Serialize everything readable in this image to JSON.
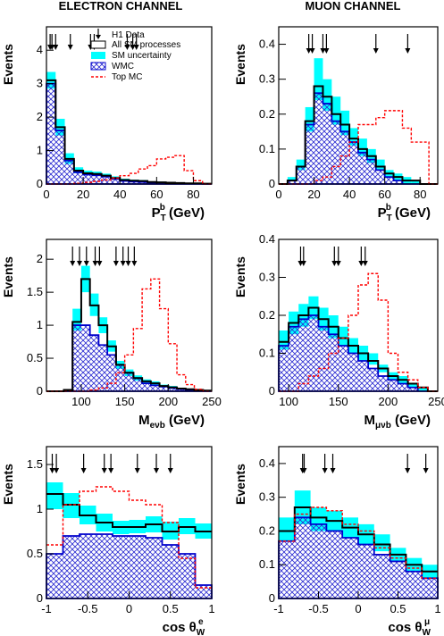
{
  "titles": {
    "left": "ELECTRON CHANNEL",
    "right": "MUON CHANNEL"
  },
  "legend": {
    "h1_data": "H1 Data",
    "all_sm": "All SM processes",
    "sm_unc": "SM uncertainty",
    "wmc": "WMC",
    "top_mc": "Top MC"
  },
  "colors": {
    "sm_line": "#000000",
    "uncertainty": "#00ffff",
    "wmc": "#0000cc",
    "top_mc": "#ff0000"
  },
  "chart_data": [
    {
      "id": "e-ptb",
      "type": "histogram",
      "ylabel": "Events",
      "xlabel_main": "P",
      "xlabel_sup": "b",
      "xlabel_sub": "T",
      "xlabel_unit": "(GeV)",
      "xlim": [
        0,
        90
      ],
      "ylim": [
        0,
        4.7
      ],
      "xticks": [
        0,
        20,
        40,
        60,
        80
      ],
      "yticks": [
        0,
        1,
        2,
        3,
        4
      ],
      "bins": [
        0,
        5,
        10,
        15,
        20,
        25,
        30,
        35,
        40,
        45,
        50,
        55,
        60,
        65,
        70,
        75,
        80,
        85,
        90
      ],
      "sm_total": [
        3.1,
        1.7,
        0.75,
        0.4,
        0.32,
        0.3,
        0.25,
        0.18,
        0.12,
        0.1,
        0.09,
        0.06,
        0.05,
        0.04,
        0.03,
        0.02,
        0.02,
        0.01
      ],
      "sm_low": [
        2.85,
        1.45,
        0.6,
        0.32,
        0.26,
        0.24,
        0.2,
        0.14,
        0.09,
        0.07,
        0.06,
        0.04,
        0.03,
        0.03,
        0.02,
        0.01,
        0.01,
        0.0
      ],
      "sm_high": [
        3.35,
        1.95,
        0.92,
        0.5,
        0.4,
        0.37,
        0.31,
        0.23,
        0.16,
        0.13,
        0.12,
        0.08,
        0.07,
        0.06,
        0.04,
        0.03,
        0.03,
        0.02
      ],
      "wmc": [
        3.0,
        1.6,
        0.7,
        0.35,
        0.28,
        0.26,
        0.22,
        0.15,
        0.09,
        0.07,
        0.06,
        0.04,
        0.03,
        0.02,
        0.01,
        0.01,
        0.0,
        0.0
      ],
      "top_mc": [
        0.0,
        0.0,
        0.0,
        0.02,
        0.05,
        0.08,
        0.12,
        0.18,
        0.25,
        0.32,
        0.45,
        0.55,
        0.75,
        0.8,
        0.85,
        0.4,
        0.1,
        0.0
      ],
      "data_arrows": [
        2,
        3,
        5,
        13,
        24,
        26,
        44,
        47,
        49
      ],
      "show_legend": true
    },
    {
      "id": "mu-ptb",
      "type": "histogram",
      "ylabel": "Events",
      "xlabel_main": "P",
      "xlabel_sup": "b",
      "xlabel_sub": "T",
      "xlabel_unit": "(GeV)",
      "xlim": [
        0,
        90
      ],
      "ylim": [
        0,
        0.45
      ],
      "xticks": [
        0,
        20,
        40,
        60,
        80
      ],
      "yticks": [
        0,
        0.1,
        0.2,
        0.3,
        0.4
      ],
      "bins": [
        0,
        5,
        10,
        15,
        20,
        25,
        30,
        35,
        40,
        45,
        50,
        55,
        60,
        65,
        70,
        75,
        80,
        85,
        90
      ],
      "sm_total": [
        0.0,
        0.01,
        0.05,
        0.18,
        0.28,
        0.25,
        0.2,
        0.17,
        0.13,
        0.1,
        0.08,
        0.05,
        0.03,
        0.02,
        0.01,
        0.01,
        0.0,
        0.0
      ],
      "sm_low": [
        0.0,
        0.01,
        0.04,
        0.15,
        0.24,
        0.21,
        0.17,
        0.14,
        0.11,
        0.08,
        0.06,
        0.04,
        0.02,
        0.01,
        0.0,
        0.0,
        0.0,
        0.0
      ],
      "sm_high": [
        0.0,
        0.02,
        0.07,
        0.22,
        0.36,
        0.3,
        0.25,
        0.21,
        0.16,
        0.13,
        0.1,
        0.07,
        0.04,
        0.03,
        0.02,
        0.01,
        0.0,
        0.0
      ],
      "wmc": [
        0.0,
        0.01,
        0.05,
        0.17,
        0.26,
        0.23,
        0.18,
        0.15,
        0.12,
        0.09,
        0.07,
        0.04,
        0.02,
        0.01,
        0.0,
        0.0,
        0.0,
        0.0
      ],
      "top_mc": [
        0.0,
        0.0,
        0.0,
        0.0,
        0.01,
        0.02,
        0.05,
        0.08,
        0.12,
        0.17,
        0.17,
        0.19,
        0.21,
        0.21,
        0.16,
        0.12,
        0.12,
        0.0
      ],
      "data_arrows": [
        17,
        19,
        25,
        27,
        55,
        73
      ],
      "show_legend": false
    },
    {
      "id": "e-mass",
      "type": "histogram",
      "ylabel": "Events",
      "xlabel_main": "M",
      "xlabel_sup": "",
      "xlabel_sub": "eνb",
      "xlabel_unit": "(GeV)",
      "xlim": [
        60,
        250
      ],
      "ylim": [
        0,
        2.3
      ],
      "xticks": [
        100,
        150,
        200,
        250
      ],
      "yticks": [
        0,
        0.5,
        1,
        1.5,
        2
      ],
      "bins": [
        60,
        70,
        80,
        90,
        100,
        110,
        120,
        130,
        140,
        150,
        160,
        170,
        180,
        190,
        200,
        210,
        220,
        230,
        240,
        250
      ],
      "sm_total": [
        0.0,
        0.0,
        0.02,
        1.05,
        1.7,
        1.3,
        1.0,
        0.68,
        0.4,
        0.28,
        0.2,
        0.15,
        0.12,
        0.08,
        0.06,
        0.04,
        0.03,
        0.02,
        0.01
      ],
      "sm_low": [
        0.0,
        0.0,
        0.02,
        0.92,
        1.5,
        1.14,
        0.88,
        0.6,
        0.34,
        0.23,
        0.16,
        0.12,
        0.09,
        0.06,
        0.04,
        0.03,
        0.02,
        0.01,
        0.0
      ],
      "sm_high": [
        0.0,
        0.0,
        0.03,
        1.25,
        1.9,
        1.48,
        1.12,
        0.77,
        0.46,
        0.33,
        0.24,
        0.18,
        0.15,
        0.1,
        0.08,
        0.05,
        0.04,
        0.03,
        0.02
      ],
      "wmc": [
        0.0,
        0.0,
        0.02,
        1.0,
        1.0,
        0.85,
        0.7,
        0.55,
        0.4,
        0.28,
        0.2,
        0.12,
        0.09,
        0.07,
        0.05,
        0.03,
        0.02,
        0.01,
        0.0
      ],
      "top_mc": [
        0.0,
        0.0,
        0.0,
        0.0,
        0.0,
        0.02,
        0.05,
        0.12,
        0.28,
        0.55,
        0.95,
        1.55,
        1.7,
        1.25,
        0.72,
        0.25,
        0.1,
        0.03,
        0.0
      ],
      "data_arrows": [
        90,
        98,
        106,
        116,
        121,
        140,
        148,
        154,
        161
      ],
      "show_legend": false
    },
    {
      "id": "mu-mass",
      "type": "histogram",
      "ylabel": "Events",
      "xlabel_main": "M",
      "xlabel_sup": "",
      "xlabel_sub": "μνb",
      "xlabel_unit": "(GeV)",
      "xlim": [
        90,
        250
      ],
      "ylim": [
        0,
        0.4
      ],
      "xticks": [
        100,
        150,
        200,
        250
      ],
      "yticks": [
        0,
        0.1,
        0.2,
        0.3,
        0.4
      ],
      "bins": [
        90,
        100,
        110,
        120,
        130,
        140,
        150,
        160,
        170,
        180,
        190,
        200,
        210,
        220,
        230,
        240,
        250
      ],
      "sm_total": [
        0.13,
        0.18,
        0.2,
        0.22,
        0.19,
        0.17,
        0.14,
        0.12,
        0.1,
        0.08,
        0.06,
        0.04,
        0.03,
        0.02,
        0.01,
        0.0
      ],
      "sm_low": [
        0.11,
        0.15,
        0.17,
        0.19,
        0.16,
        0.14,
        0.12,
        0.1,
        0.08,
        0.07,
        0.05,
        0.03,
        0.02,
        0.01,
        0.0,
        0.0
      ],
      "sm_high": [
        0.16,
        0.21,
        0.23,
        0.25,
        0.22,
        0.2,
        0.17,
        0.14,
        0.12,
        0.1,
        0.07,
        0.05,
        0.04,
        0.02,
        0.01,
        0.0
      ],
      "wmc": [
        0.12,
        0.17,
        0.19,
        0.2,
        0.17,
        0.15,
        0.12,
        0.1,
        0.08,
        0.06,
        0.04,
        0.03,
        0.02,
        0.01,
        0.0,
        0.0
      ],
      "top_mc": [
        0.0,
        0.0,
        0.02,
        0.04,
        0.06,
        0.1,
        0.14,
        0.2,
        0.28,
        0.31,
        0.24,
        0.1,
        0.05,
        0.03,
        0.01,
        0.0
      ],
      "data_arrows": [
        112,
        115,
        146,
        150,
        173,
        177
      ],
      "show_legend": false
    },
    {
      "id": "e-cos",
      "type": "histogram",
      "ylabel": "Events",
      "xlabel_main": "cos θ",
      "xlabel_sup": "e",
      "xlabel_sub": "W",
      "xlabel_unit": "",
      "xlim": [
        -1,
        1
      ],
      "ylim": [
        0,
        1.7
      ],
      "xticks": [
        -1,
        -0.5,
        0,
        0.5,
        1
      ],
      "xticklabels": [
        "-1",
        "-0.5",
        "0",
        "0.5",
        "1"
      ],
      "yticks": [
        0,
        0.5,
        1,
        1.5
      ],
      "bins": [
        -1,
        -0.8,
        -0.6,
        -0.4,
        -0.2,
        0,
        0.2,
        0.4,
        0.6,
        0.8,
        1
      ],
      "sm_total": [
        1.17,
        1.05,
        0.93,
        0.85,
        0.8,
        0.8,
        0.83,
        0.75,
        0.8,
        0.75
      ],
      "sm_low": [
        1.0,
        0.9,
        0.83,
        0.75,
        0.72,
        0.73,
        0.74,
        0.66,
        0.72,
        0.67
      ],
      "sm_high": [
        1.3,
        1.18,
        1.04,
        0.95,
        0.87,
        0.88,
        0.92,
        0.86,
        0.9,
        0.84
      ],
      "wmc": [
        0.5,
        0.7,
        0.72,
        0.72,
        0.7,
        0.7,
        0.68,
        0.6,
        0.5,
        0.15
      ],
      "top_mc": [
        0.6,
        1.05,
        1.2,
        1.25,
        1.2,
        1.1,
        1.05,
        0.85,
        0.45,
        0.12
      ],
      "data_arrows": [
        -0.93,
        -0.88,
        -0.55,
        -0.3,
        -0.22,
        0.1,
        0.33,
        0.5
      ],
      "show_legend": false
    },
    {
      "id": "mu-cos",
      "type": "histogram",
      "ylabel": "Events",
      "xlabel_main": "cos θ",
      "xlabel_sup": "μ",
      "xlabel_sub": "W",
      "xlabel_unit": "",
      "xlim": [
        -1,
        1
      ],
      "ylim": [
        0,
        0.45
      ],
      "xticks": [
        -1,
        -0.5,
        0,
        0.5,
        1
      ],
      "xticklabels": [
        "-1",
        "-0.5",
        "0",
        "0.5",
        "1"
      ],
      "yticks": [
        0,
        0.1,
        0.2,
        0.3,
        0.4
      ],
      "bins": [
        -1,
        -0.8,
        -0.6,
        -0.4,
        -0.2,
        0,
        0.2,
        0.4,
        0.6,
        0.8,
        1
      ],
      "sm_total": [
        0.2,
        0.27,
        0.24,
        0.23,
        0.21,
        0.19,
        0.16,
        0.13,
        0.1,
        0.08
      ],
      "sm_low": [
        0.17,
        0.22,
        0.2,
        0.2,
        0.18,
        0.16,
        0.14,
        0.11,
        0.08,
        0.06
      ],
      "sm_high": [
        0.24,
        0.32,
        0.27,
        0.26,
        0.24,
        0.22,
        0.19,
        0.15,
        0.12,
        0.1
      ],
      "wmc": [
        0.17,
        0.24,
        0.22,
        0.2,
        0.18,
        0.16,
        0.13,
        0.11,
        0.08,
        0.06
      ],
      "top_mc": [
        0.17,
        0.25,
        0.27,
        0.26,
        0.22,
        0.2,
        0.15,
        0.12,
        0.09,
        0.06
      ],
      "data_arrows": [
        -0.7,
        -0.68,
        -0.42,
        -0.32,
        0.62,
        0.85
      ],
      "show_legend": false
    }
  ]
}
